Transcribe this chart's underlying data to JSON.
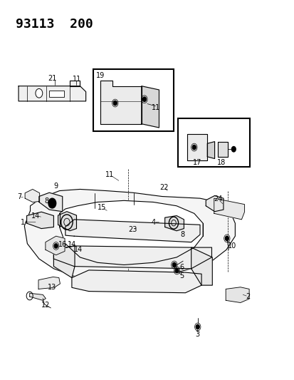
{
  "title_text": "93113  200",
  "bg_color": "#ffffff",
  "line_color": "#000000",
  "title_fontsize": 13,
  "label_fontsize": 7,
  "fig_width": 4.14,
  "fig_height": 5.33,
  "dpi": 100
}
